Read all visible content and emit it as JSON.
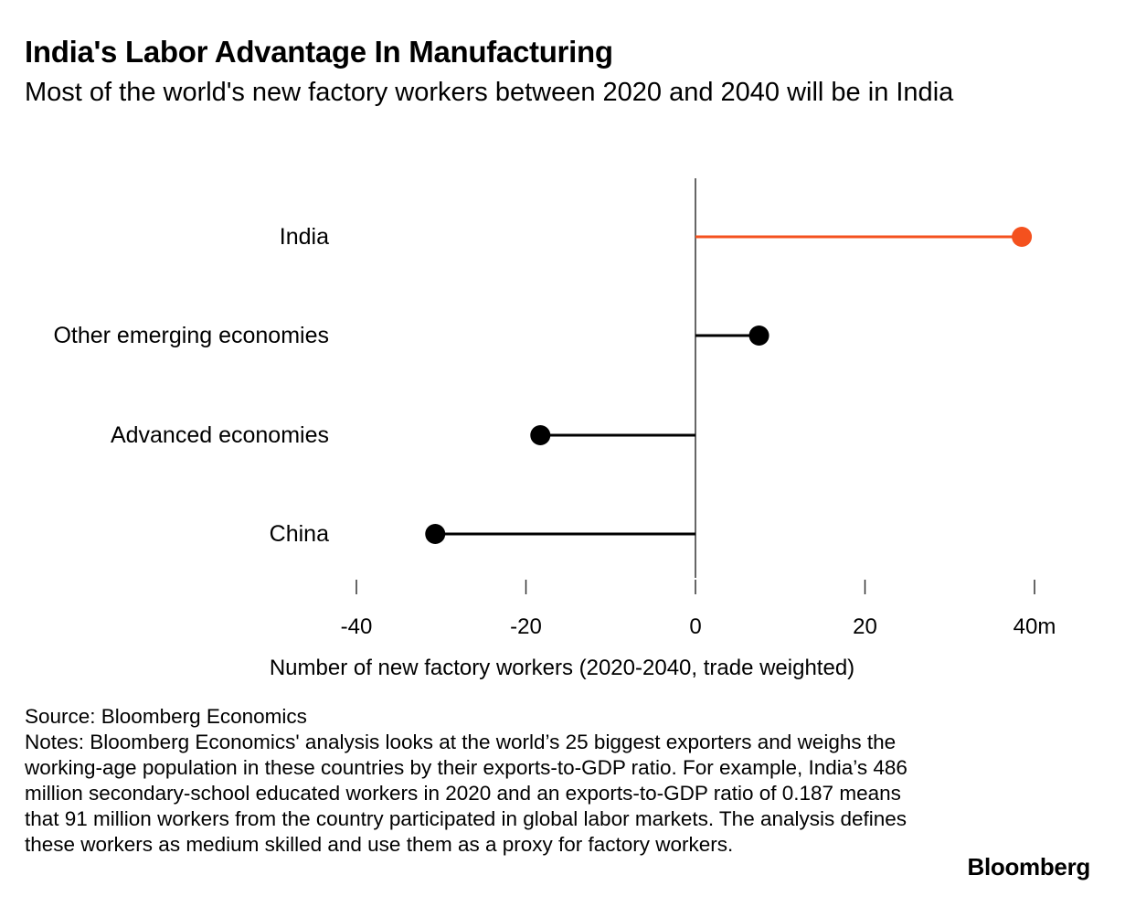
{
  "header": {
    "title": "India's Labor Advantage In Manufacturing",
    "subtitle": "Most of the world's new factory workers between 2020 and 2040 will be in India"
  },
  "chart_data": {
    "type": "lollipop",
    "orientation": "horizontal",
    "categories": [
      "India",
      "Other emerging economies",
      "Advanced economies",
      "China"
    ],
    "values": [
      38.5,
      7.5,
      -18.3,
      -30.7
    ],
    "colors": [
      "#f4511e",
      "#000000",
      "#000000",
      "#000000"
    ],
    "xlim": [
      -40,
      40
    ],
    "xticks": [
      -40,
      -20,
      0,
      20,
      40
    ],
    "xtick_labels": [
      "-40",
      "-20",
      "0",
      "20",
      "40m"
    ],
    "xlabel": "Number of new factory workers (2020-2040, trade weighted)",
    "title": "India's Labor Advantage In Manufacturing",
    "subtitle": "Most of the world's new factory workers between 2020 and 2040 will be in India",
    "grid": false
  },
  "footer": {
    "source": "Source: Bloomberg Economics",
    "notes": "Notes: Bloomberg Economics' analysis looks at the world’s 25 biggest exporters and weighs the working-age population in these countries by their exports-to-GDP ratio. For example, India’s 486 million secondary-school educated workers in 2020 and an exports-to-GDP ratio of 0.187 means that 91 million workers from the country participated in global labor markets. The analysis defines these workers as medium skilled and use them as a proxy for factory workers."
  },
  "brand": {
    "label": "Bloomberg"
  }
}
